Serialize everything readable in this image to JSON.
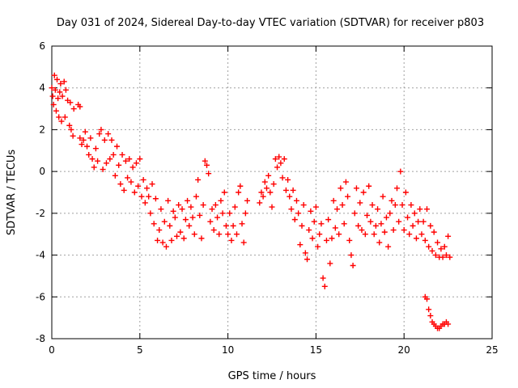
{
  "chart_data": {
    "type": "scatter",
    "title": "Day 031 of 2024, Sidereal Day-to-day VTEC variation (SDTVAR) for receiver p803",
    "xlabel": "GPS time / hours",
    "ylabel": "SDTVAR / TECUs",
    "xlim": [
      0,
      25
    ],
    "ylim": [
      -8,
      6
    ],
    "xticks": [
      0,
      5,
      10,
      15,
      20,
      25
    ],
    "yticks": [
      -8,
      -6,
      -4,
      -2,
      0,
      2,
      4,
      6
    ],
    "grid": true,
    "marker": "+",
    "series": [
      {
        "name": "SDTVAR",
        "color": "#ff0000",
        "points": [
          [
            0.0,
            4.0
          ],
          [
            0.05,
            3.6
          ],
          [
            0.1,
            3.2
          ],
          [
            0.15,
            4.6
          ],
          [
            0.2,
            3.9
          ],
          [
            0.25,
            2.9
          ],
          [
            0.3,
            4.4
          ],
          [
            0.35,
            3.5
          ],
          [
            0.4,
            2.6
          ],
          [
            0.45,
            3.8
          ],
          [
            0.5,
            4.2
          ],
          [
            0.55,
            2.4
          ],
          [
            0.6,
            3.6
          ],
          [
            0.7,
            4.3
          ],
          [
            0.75,
            2.6
          ],
          [
            0.8,
            3.9
          ],
          [
            0.9,
            3.4
          ],
          [
            1.0,
            2.2
          ],
          [
            1.05,
            3.3
          ],
          [
            1.1,
            2.0
          ],
          [
            1.2,
            1.7
          ],
          [
            1.25,
            3.0
          ],
          [
            1.5,
            3.2
          ],
          [
            1.6,
            3.1
          ],
          [
            1.6,
            1.6
          ],
          [
            1.7,
            1.3
          ],
          [
            1.8,
            1.5
          ],
          [
            1.9,
            1.9
          ],
          [
            2.0,
            1.2
          ],
          [
            2.1,
            0.8
          ],
          [
            2.2,
            1.6
          ],
          [
            2.3,
            0.6
          ],
          [
            2.4,
            0.2
          ],
          [
            2.5,
            1.1
          ],
          [
            2.6,
            0.5
          ],
          [
            2.7,
            1.8
          ],
          [
            2.8,
            2.0
          ],
          [
            2.9,
            0.1
          ],
          [
            3.0,
            1.5
          ],
          [
            3.1,
            0.4
          ],
          [
            3.2,
            1.8
          ],
          [
            3.3,
            0.6
          ],
          [
            3.4,
            1.5
          ],
          [
            3.5,
            0.8
          ],
          [
            3.6,
            -0.2
          ],
          [
            3.7,
            1.2
          ],
          [
            3.8,
            0.3
          ],
          [
            3.9,
            -0.6
          ],
          [
            4.0,
            0.8
          ],
          [
            4.1,
            -0.9
          ],
          [
            4.2,
            0.5
          ],
          [
            4.3,
            -0.3
          ],
          [
            4.4,
            0.6
          ],
          [
            4.5,
            -0.5
          ],
          [
            4.6,
            0.2
          ],
          [
            4.7,
            -1.0
          ],
          [
            4.8,
            0.4
          ],
          [
            4.9,
            -0.7
          ],
          [
            5.0,
            0.6
          ],
          [
            5.1,
            -1.2
          ],
          [
            5.2,
            -0.4
          ],
          [
            5.3,
            -1.5
          ],
          [
            5.4,
            -0.8
          ],
          [
            5.5,
            -1.2
          ],
          [
            5.6,
            -2.0
          ],
          [
            5.7,
            -0.6
          ],
          [
            5.8,
            -2.5
          ],
          [
            5.9,
            -1.3
          ],
          [
            6.0,
            -3.3
          ],
          [
            6.1,
            -2.8
          ],
          [
            6.2,
            -1.8
          ],
          [
            6.3,
            -3.4
          ],
          [
            6.4,
            -2.4
          ],
          [
            6.5,
            -3.6
          ],
          [
            6.6,
            -1.4
          ],
          [
            6.7,
            -2.6
          ],
          [
            6.8,
            -3.3
          ],
          [
            6.9,
            -1.9
          ],
          [
            7.0,
            -2.2
          ],
          [
            7.1,
            -3.1
          ],
          [
            7.2,
            -1.6
          ],
          [
            7.3,
            -2.9
          ],
          [
            7.4,
            -1.8
          ],
          [
            7.5,
            -3.2
          ],
          [
            7.6,
            -2.3
          ],
          [
            7.7,
            -1.4
          ],
          [
            7.8,
            -2.6
          ],
          [
            7.9,
            -1.7
          ],
          [
            8.0,
            -2.2
          ],
          [
            8.1,
            -3.0
          ],
          [
            8.2,
            -1.2
          ],
          [
            8.3,
            -0.4
          ],
          [
            8.4,
            -2.1
          ],
          [
            8.5,
            -3.2
          ],
          [
            8.6,
            -1.6
          ],
          [
            8.7,
            0.5
          ],
          [
            8.8,
            0.3
          ],
          [
            8.9,
            -0.1
          ],
          [
            9.0,
            -2.4
          ],
          [
            9.1,
            -1.8
          ],
          [
            9.2,
            -2.8
          ],
          [
            9.3,
            -1.6
          ],
          [
            9.4,
            -2.2
          ],
          [
            9.5,
            -3.0
          ],
          [
            9.6,
            -1.4
          ],
          [
            9.7,
            -2.0
          ],
          [
            9.8,
            -1.0
          ],
          [
            9.9,
            -2.6
          ],
          [
            10.0,
            -3.0
          ],
          [
            10.1,
            -2.0
          ],
          [
            10.2,
            -3.3
          ],
          [
            10.3,
            -2.6
          ],
          [
            10.4,
            -1.7
          ],
          [
            10.5,
            -3.0
          ],
          [
            10.6,
            -1.0
          ],
          [
            10.7,
            -0.7
          ],
          [
            10.8,
            -2.5
          ],
          [
            10.9,
            -3.4
          ],
          [
            11.0,
            -2.0
          ],
          [
            11.1,
            -1.4
          ],
          [
            11.8,
            -1.5
          ],
          [
            11.9,
            -1.0
          ],
          [
            12.0,
            -1.2
          ],
          [
            12.1,
            -0.5
          ],
          [
            12.2,
            -0.8
          ],
          [
            12.3,
            -0.2
          ],
          [
            12.4,
            -1.0
          ],
          [
            12.5,
            -1.7
          ],
          [
            12.6,
            -0.6
          ],
          [
            12.7,
            0.6
          ],
          [
            12.8,
            0.2
          ],
          [
            12.9,
            0.7
          ],
          [
            13.0,
            0.4
          ],
          [
            13.1,
            -0.3
          ],
          [
            13.2,
            0.6
          ],
          [
            13.3,
            -0.9
          ],
          [
            13.4,
            -0.4
          ],
          [
            13.5,
            -1.2
          ],
          [
            13.6,
            -1.8
          ],
          [
            13.7,
            -0.9
          ],
          [
            13.8,
            -2.3
          ],
          [
            13.9,
            -1.4
          ],
          [
            14.0,
            -2.0
          ],
          [
            14.1,
            -3.5
          ],
          [
            14.2,
            -2.6
          ],
          [
            14.3,
            -1.6
          ],
          [
            14.4,
            -3.9
          ],
          [
            14.5,
            -4.2
          ],
          [
            14.6,
            -2.8
          ],
          [
            14.7,
            -1.9
          ],
          [
            14.8,
            -3.2
          ],
          [
            14.9,
            -2.4
          ],
          [
            15.0,
            -1.7
          ],
          [
            15.1,
            -3.6
          ],
          [
            15.2,
            -3.0
          ],
          [
            15.3,
            -2.5
          ],
          [
            15.4,
            -5.1
          ],
          [
            15.5,
            -5.5
          ],
          [
            15.6,
            -3.3
          ],
          [
            15.7,
            -2.3
          ],
          [
            15.8,
            -4.4
          ],
          [
            15.9,
            -3.2
          ],
          [
            16.0,
            -1.4
          ],
          [
            16.1,
            -2.7
          ],
          [
            16.2,
            -1.8
          ],
          [
            16.3,
            -3.0
          ],
          [
            16.4,
            -0.8
          ],
          [
            16.5,
            -1.6
          ],
          [
            16.6,
            -2.5
          ],
          [
            16.7,
            -0.5
          ],
          [
            16.8,
            -1.2
          ],
          [
            16.9,
            -3.3
          ],
          [
            17.0,
            -4.0
          ],
          [
            17.1,
            -4.5
          ],
          [
            17.2,
            -2.0
          ],
          [
            17.3,
            -0.8
          ],
          [
            17.4,
            -2.6
          ],
          [
            17.5,
            -1.5
          ],
          [
            17.6,
            -2.8
          ],
          [
            17.7,
            -1.0
          ],
          [
            17.8,
            -3.0
          ],
          [
            17.9,
            -2.1
          ],
          [
            18.0,
            -0.7
          ],
          [
            18.1,
            -2.4
          ],
          [
            18.2,
            -1.6
          ],
          [
            18.3,
            -3.0
          ],
          [
            18.4,
            -2.6
          ],
          [
            18.5,
            -1.8
          ],
          [
            18.6,
            -3.4
          ],
          [
            18.7,
            -2.5
          ],
          [
            18.8,
            -1.2
          ],
          [
            18.9,
            -2.9
          ],
          [
            19.0,
            -2.2
          ],
          [
            19.1,
            -3.6
          ],
          [
            19.2,
            -2.0
          ],
          [
            19.3,
            -1.4
          ],
          [
            19.4,
            -2.8
          ],
          [
            19.5,
            -1.6
          ],
          [
            19.6,
            -0.8
          ],
          [
            19.7,
            -2.4
          ],
          [
            19.8,
            0.0
          ],
          [
            19.9,
            -1.6
          ],
          [
            20.0,
            -2.8
          ],
          [
            20.1,
            -1.0
          ],
          [
            20.2,
            -2.2
          ],
          [
            20.3,
            -3.0
          ],
          [
            20.4,
            -1.6
          ],
          [
            20.5,
            -2.6
          ],
          [
            20.6,
            -2.0
          ],
          [
            20.7,
            -3.2
          ],
          [
            20.8,
            -2.4
          ],
          [
            20.9,
            -1.8
          ],
          [
            21.0,
            -3.0
          ],
          [
            21.1,
            -2.4
          ],
          [
            21.2,
            -3.3
          ],
          [
            21.3,
            -1.8
          ],
          [
            21.4,
            -3.6
          ],
          [
            21.5,
            -2.6
          ],
          [
            21.6,
            -3.8
          ],
          [
            21.7,
            -2.9
          ],
          [
            21.8,
            -4.0
          ],
          [
            21.9,
            -3.4
          ],
          [
            22.0,
            -4.1
          ],
          [
            22.1,
            -3.7
          ],
          [
            22.2,
            -4.1
          ],
          [
            22.3,
            -3.6
          ],
          [
            22.4,
            -4.0
          ],
          [
            22.5,
            -3.1
          ],
          [
            22.6,
            -4.1
          ],
          [
            21.2,
            -6.0
          ],
          [
            21.3,
            -6.1
          ],
          [
            21.4,
            -6.6
          ],
          [
            21.5,
            -6.9
          ],
          [
            21.6,
            -7.2
          ],
          [
            21.7,
            -7.3
          ],
          [
            21.8,
            -7.4
          ],
          [
            21.9,
            -7.5
          ],
          [
            22.0,
            -7.5
          ],
          [
            22.1,
            -7.4
          ],
          [
            22.2,
            -7.3
          ],
          [
            22.3,
            -7.3
          ],
          [
            22.4,
            -7.2
          ],
          [
            22.5,
            -7.3
          ]
        ]
      }
    ]
  }
}
